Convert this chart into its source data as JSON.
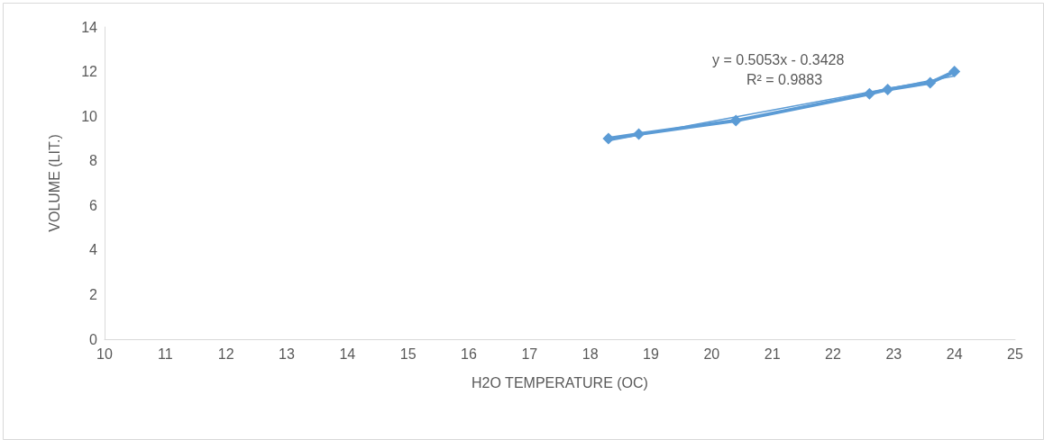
{
  "chart_data": {
    "type": "line",
    "xlabel": "H2O TEMPERATURE (OC)",
    "ylabel": "VOLUME (LIT.)",
    "xlim": [
      10,
      25
    ],
    "xticks": [
      10,
      11,
      12,
      13,
      14,
      15,
      16,
      17,
      18,
      19,
      20,
      21,
      22,
      23,
      24,
      25
    ],
    "ylim": [
      0,
      14
    ],
    "yticks": [
      0,
      2,
      4,
      6,
      8,
      10,
      12,
      14
    ],
    "marker": "diamond",
    "grid": false,
    "annotations": [
      "y = 0.5053x - 0.3428",
      "R² = 0.9883"
    ],
    "series": [
      {
        "color": "#5b9bd5",
        "x": [
          18.3,
          18.8,
          20.4,
          22.6,
          22.9,
          23.6,
          24.0
        ],
        "values": [
          9.0,
          9.2,
          9.8,
          11.0,
          11.2,
          11.5,
          12.0
        ]
      },
      {
        "type": "line",
        "marker": "none",
        "color": "#5b9bd5",
        "x": [
          18.3,
          24.0
        ],
        "values": [
          8.9,
          11.8
        ]
      }
    ]
  }
}
